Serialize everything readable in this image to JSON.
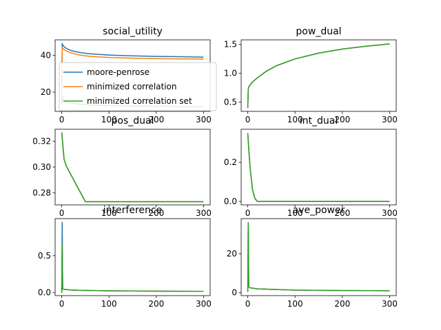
{
  "colors": {
    "moore_penrose": "#1f77b4",
    "minimized_correlation": "#ff7f0e",
    "minimized_correlation_set": "#2ca02c",
    "axes": "#000000",
    "background": "#ffffff"
  },
  "legend": {
    "placement": "inside social_utility panel, overlapping lower area",
    "entries": [
      "moore-penrose",
      "minimized correlation",
      "minimized correlation set"
    ]
  },
  "chart_data": [
    {
      "type": "line",
      "title": "social_utility",
      "xlim": [
        -14,
        314
      ],
      "ylim": [
        9.5,
        48.5
      ],
      "xticks": [
        0,
        100,
        200,
        300
      ],
      "xtick_labels": [
        "0",
        "100",
        "200",
        "300"
      ],
      "yticks": [
        20,
        40
      ],
      "ytick_labels": [
        "20",
        "40"
      ],
      "grid": false,
      "series": [
        {
          "name": "moore-penrose",
          "color": "#1f77b4",
          "x": [
            0,
            1,
            2,
            5,
            10,
            20,
            40,
            60,
            100,
            150,
            200,
            250,
            300
          ],
          "y": [
            14,
            46.5,
            45.8,
            44.8,
            43.8,
            42.6,
            41.5,
            40.9,
            40.2,
            39.8,
            39.5,
            39.3,
            39.1
          ]
        },
        {
          "name": "minimized correlation",
          "color": "#ff7f0e",
          "x": [
            0,
            1,
            2,
            5,
            10,
            20,
            40,
            60,
            100,
            150,
            200,
            250,
            300
          ],
          "y": [
            14,
            44.5,
            44.0,
            43.3,
            42.4,
            41.3,
            40.1,
            39.5,
            38.9,
            38.5,
            38.3,
            38.1,
            38.0
          ]
        },
        {
          "name": "minimized correlation set",
          "color": "#2ca02c",
          "x": [
            0,
            1,
            2,
            5,
            10,
            20,
            40,
            60,
            100,
            150,
            200,
            250,
            300
          ],
          "y": [
            13,
            17.2,
            16.5,
            15.6,
            14.7,
            14.0,
            13.3,
            12.9,
            12.6,
            12.4,
            12.3,
            12.2,
            12.1
          ]
        }
      ]
    },
    {
      "type": "line",
      "title": "pow_dual",
      "xlim": [
        -14,
        314
      ],
      "ylim": [
        0.34,
        1.58
      ],
      "xticks": [
        0,
        100,
        200,
        300
      ],
      "xtick_labels": [
        "0",
        "100",
        "200",
        "300"
      ],
      "yticks": [
        0.5,
        1.0,
        1.5
      ],
      "ytick_labels": [
        "0.5",
        "1.0",
        "1.5"
      ],
      "grid": false,
      "series": [
        {
          "name": "moore-penrose",
          "color": "#1f77b4",
          "x": [
            0,
            1,
            3,
            10,
            20,
            40,
            60,
            100,
            150,
            200,
            250,
            300
          ],
          "y": [
            0.4,
            0.73,
            0.78,
            0.85,
            0.92,
            1.04,
            1.13,
            1.25,
            1.35,
            1.42,
            1.47,
            1.51
          ]
        },
        {
          "name": "minimized correlation",
          "color": "#ff7f0e",
          "x": [
            0,
            1,
            3,
            10,
            20,
            40,
            60,
            100,
            150,
            200,
            250,
            300
          ],
          "y": [
            0.4,
            0.73,
            0.78,
            0.85,
            0.92,
            1.04,
            1.13,
            1.25,
            1.35,
            1.42,
            1.47,
            1.51
          ]
        },
        {
          "name": "minimized correlation set",
          "color": "#2ca02c",
          "x": [
            0,
            1,
            3,
            10,
            20,
            40,
            60,
            100,
            150,
            200,
            250,
            300
          ],
          "y": [
            0.4,
            0.73,
            0.78,
            0.85,
            0.92,
            1.04,
            1.13,
            1.25,
            1.35,
            1.42,
            1.47,
            1.51
          ]
        }
      ]
    },
    {
      "type": "line",
      "title": "pos_dual",
      "xlim": [
        -14,
        314
      ],
      "ylim": [
        0.2705,
        0.3295
      ],
      "xticks": [
        0,
        100,
        200,
        300
      ],
      "xtick_labels": [
        "0",
        "100",
        "200",
        "300"
      ],
      "yticks": [
        0.28,
        0.3,
        0.32
      ],
      "ytick_labels": [
        "0.28",
        "0.30",
        "0.32"
      ],
      "grid": false,
      "series": [
        {
          "name": "moore-penrose",
          "color": "#1f77b4",
          "x": [
            0,
            5,
            10,
            50,
            300
          ],
          "y": [
            0.327,
            0.306,
            0.3005,
            0.273,
            0.273
          ]
        },
        {
          "name": "minimized correlation",
          "color": "#ff7f0e",
          "x": [
            0,
            5,
            10,
            50,
            300
          ],
          "y": [
            0.327,
            0.306,
            0.3005,
            0.273,
            0.273
          ]
        },
        {
          "name": "minimized correlation set",
          "color": "#2ca02c",
          "x": [
            0,
            5,
            10,
            50,
            300
          ],
          "y": [
            0.327,
            0.306,
            0.3005,
            0.273,
            0.273
          ]
        }
      ]
    },
    {
      "type": "line",
      "title": "int_dual",
      "xlim": [
        -14,
        314
      ],
      "ylim": [
        -0.018,
        0.37
      ],
      "xticks": [
        0,
        100,
        200,
        300
      ],
      "xtick_labels": [
        "0",
        "100",
        "200",
        "300"
      ],
      "yticks": [
        0.0,
        0.2
      ],
      "ytick_labels": [
        "0.0",
        "0.2"
      ],
      "grid": false,
      "series": [
        {
          "name": "moore-penrose",
          "color": "#1f77b4",
          "x": [
            0,
            2,
            5,
            10,
            15,
            20,
            300
          ],
          "y": [
            0.35,
            0.27,
            0.17,
            0.06,
            0.015,
            0.0,
            0.0
          ]
        },
        {
          "name": "minimized correlation",
          "color": "#ff7f0e",
          "x": [
            0,
            2,
            5,
            10,
            15,
            20,
            300
          ],
          "y": [
            0.35,
            0.27,
            0.17,
            0.06,
            0.015,
            0.0,
            0.0
          ]
        },
        {
          "name": "minimized correlation set",
          "color": "#2ca02c",
          "x": [
            0,
            2,
            5,
            10,
            15,
            20,
            300
          ],
          "y": [
            0.35,
            0.27,
            0.17,
            0.06,
            0.015,
            0.0,
            0.0
          ]
        }
      ]
    },
    {
      "type": "line",
      "title": "interference",
      "xlim": [
        -14,
        314
      ],
      "ylim": [
        -0.04,
        1.0
      ],
      "xticks": [
        0,
        100,
        200,
        300
      ],
      "xtick_labels": [
        "0",
        "100",
        "200",
        "300"
      ],
      "yticks": [
        0.0,
        0.5
      ],
      "ytick_labels": [
        "0.0",
        "0.5"
      ],
      "grid": false,
      "series": [
        {
          "name": "moore-penrose",
          "color": "#1f77b4",
          "x": [
            0,
            1,
            2,
            5,
            20,
            50,
            100,
            200,
            300
          ],
          "y": [
            0.0,
            0.95,
            0.05,
            0.045,
            0.035,
            0.03,
            0.025,
            0.02,
            0.018
          ]
        },
        {
          "name": "minimized correlation",
          "color": "#ff7f0e",
          "x": [
            0,
            1,
            2,
            5,
            20,
            50,
            100,
            200,
            300
          ],
          "y": [
            0.0,
            0.65,
            0.05,
            0.045,
            0.035,
            0.03,
            0.025,
            0.02,
            0.018
          ]
        },
        {
          "name": "minimized correlation set",
          "color": "#2ca02c",
          "x": [
            0,
            1,
            2,
            5,
            20,
            50,
            100,
            200,
            300
          ],
          "y": [
            0.0,
            0.65,
            0.05,
            0.045,
            0.035,
            0.03,
            0.025,
            0.02,
            0.018
          ]
        }
      ]
    },
    {
      "type": "line",
      "title": "ave_power",
      "xlim": [
        -14,
        314
      ],
      "ylim": [
        -1.5,
        38
      ],
      "xticks": [
        0,
        100,
        200,
        300
      ],
      "xtick_labels": [
        "0",
        "100",
        "200",
        "300"
      ],
      "yticks": [
        0,
        20
      ],
      "ytick_labels": [
        "0",
        "20"
      ],
      "grid": false,
      "series": [
        {
          "name": "moore-penrose",
          "color": "#1f77b4",
          "x": [
            0,
            1,
            2,
            5,
            20,
            50,
            100,
            200,
            300
          ],
          "y": [
            0.5,
            36,
            3.0,
            2.5,
            2.0,
            1.7,
            1.3,
            1.1,
            1.0
          ]
        },
        {
          "name": "minimized correlation",
          "color": "#ff7f0e",
          "x": [
            0,
            1,
            2,
            5,
            20,
            50,
            100,
            200,
            300
          ],
          "y": [
            0.5,
            36,
            3.0,
            2.5,
            2.0,
            1.7,
            1.3,
            1.1,
            1.0
          ]
        },
        {
          "name": "minimized correlation set",
          "color": "#2ca02c",
          "x": [
            0,
            1,
            2,
            5,
            20,
            50,
            100,
            200,
            300
          ],
          "y": [
            0.5,
            36,
            3.0,
            2.5,
            2.0,
            1.7,
            1.3,
            1.1,
            1.0
          ]
        }
      ]
    }
  ]
}
